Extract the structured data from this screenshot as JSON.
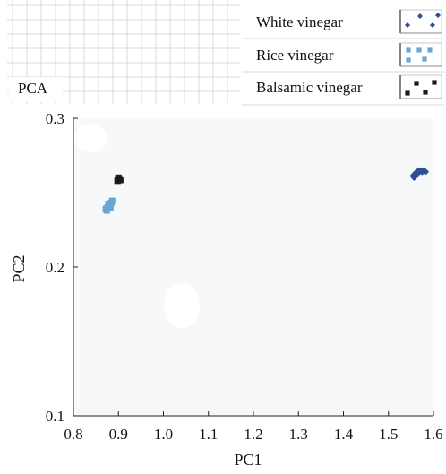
{
  "corner_label": "PCA",
  "chart_data": {
    "type": "scatter",
    "xlabel": "PC1",
    "ylabel": "PC2",
    "xlim": [
      0.8,
      1.6
    ],
    "ylim": [
      0.1,
      0.3
    ],
    "x_ticks": [
      "0.8",
      "0.9",
      "1.0",
      "1.1",
      "1.2",
      "1.3",
      "1.4",
      "1.5",
      "1.6"
    ],
    "y_ticks": [
      "0.1",
      "0.2",
      "0.3"
    ],
    "grid": false,
    "legend_position": "top-right",
    "series": [
      {
        "name": "White vinegar",
        "marker": "diamond",
        "color": "#2e4f95",
        "points": [
          [
            1.555,
            0.2615
          ],
          [
            1.558,
            0.2625
          ],
          [
            1.561,
            0.2635
          ],
          [
            1.564,
            0.2642
          ],
          [
            1.568,
            0.2648
          ],
          [
            1.572,
            0.265
          ],
          [
            1.576,
            0.2648
          ],
          [
            1.58,
            0.2645
          ],
          [
            1.583,
            0.264
          ],
          [
            1.56,
            0.261
          ],
          [
            1.565,
            0.263
          ],
          [
            1.57,
            0.264
          ],
          [
            1.575,
            0.2638
          ],
          [
            1.557,
            0.26
          ],
          [
            1.562,
            0.262
          ]
        ]
      },
      {
        "name": "Rice vinegar",
        "marker": "square",
        "color": "#6aa6d2",
        "points": [
          [
            0.872,
            0.239
          ],
          [
            0.876,
            0.24
          ],
          [
            0.88,
            0.2415
          ],
          [
            0.884,
            0.243
          ],
          [
            0.886,
            0.2445
          ],
          [
            0.874,
            0.238
          ],
          [
            0.882,
            0.2395
          ],
          [
            0.878,
            0.2425
          ]
        ]
      },
      {
        "name": "Balsamic vinegar",
        "marker": "square",
        "color": "#1a1a1a",
        "points": [
          [
            0.898,
            0.258
          ],
          [
            0.902,
            0.259
          ],
          [
            0.9,
            0.26
          ],
          [
            0.904,
            0.2585
          ]
        ]
      }
    ]
  }
}
